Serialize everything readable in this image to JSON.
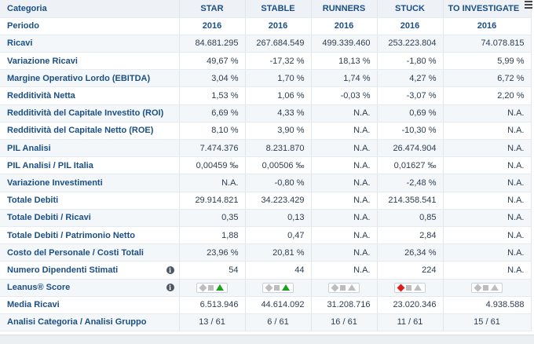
{
  "header": {
    "label": "Categoria",
    "columns": [
      "STAR",
      "STABLE",
      "RUNNERS",
      "STUCK",
      "TO INVESTIGATE"
    ]
  },
  "period": {
    "label": "Periodo",
    "values": [
      "2016",
      "2016",
      "2016",
      "2016",
      "2016"
    ]
  },
  "rows": [
    {
      "label": "Ricavi",
      "values": [
        "84.681.295",
        "267.684.549",
        "499.339.460",
        "253.223.804",
        "74.078.815"
      ]
    },
    {
      "label": "Variazione Ricavi",
      "values": [
        "49,67 %",
        "-17,32 %",
        "18,13 %",
        "-1,80 %",
        "5,99 %"
      ]
    },
    {
      "label": "Margine Operativo Lordo (EBITDA)",
      "values": [
        "3,04 %",
        "1,70 %",
        "1,74 %",
        "4,27 %",
        "6,72 %"
      ]
    },
    {
      "label": "Redditività Netta",
      "values": [
        "1,53 %",
        "1,06 %",
        "-0,03 %",
        "-3,07 %",
        "2,20 %"
      ]
    },
    {
      "label": "Redditività del Capitale Investito (ROI)",
      "values": [
        "6,69 %",
        "4,33 %",
        "N.A.",
        "0,69 %",
        "N.A."
      ]
    },
    {
      "label": "Redditività del Capitale Netto (ROE)",
      "values": [
        "8,10 %",
        "3,90 %",
        "N.A.",
        "-10,30 %",
        "N.A."
      ]
    },
    {
      "label": "PIL Analisi",
      "values": [
        "7.474.376",
        "8.231.870",
        "N.A.",
        "26.474.904",
        "N.A."
      ]
    },
    {
      "label": "PIL Analisi / PIL Italia",
      "values": [
        "0,00459 ‰",
        "0,00506 ‰",
        "N.A.",
        "0,01627 ‰",
        "N.A."
      ]
    },
    {
      "label": "Variazione Investimenti",
      "values": [
        "N.A.",
        "-0,80 %",
        "N.A.",
        "-2,48 %",
        "N.A."
      ]
    },
    {
      "label": "Totale Debiti",
      "values": [
        "29.914.821",
        "34.223.429",
        "N.A.",
        "214.358.541",
        "N.A."
      ]
    },
    {
      "label": "Totale Debiti  / Ricavi",
      "values": [
        "0,35",
        "0,13",
        "N.A.",
        "0,85",
        "N.A."
      ]
    },
    {
      "label": "Totale Debiti  / Patrimonio Netto",
      "values": [
        "1,88",
        "0,47",
        "N.A.",
        "2,84",
        "N.A."
      ]
    },
    {
      "label": "Costo del Personale / Costi Totali",
      "values": [
        "23,96 %",
        "20,81 %",
        "N.A.",
        "26,34 %",
        "N.A."
      ]
    },
    {
      "label": "Numero Dipendenti Stimati",
      "info": true,
      "values": [
        "54",
        "44",
        "N.A.",
        "224",
        "N.A."
      ]
    }
  ],
  "score_row": {
    "label": "Leanus® Score",
    "scores": [
      {
        "diamond": "#bdbdbd",
        "square": "#bdbdbd",
        "triangle": "#1aa31a"
      },
      {
        "diamond": "#bdbdbd",
        "square": "#bdbdbd",
        "triangle": "#1aa31a"
      },
      {
        "diamond": "#bdbdbd",
        "square": "#bdbdbd",
        "triangle": "#bdbdbd"
      },
      {
        "diamond": "#e01b1b",
        "square": "#bdbdbd",
        "triangle": "#bdbdbd"
      },
      {
        "diamond": "#bdbdbd",
        "square": "#bdbdbd",
        "triangle": "#bdbdbd"
      }
    ]
  },
  "tail_rows": [
    {
      "label": "Media Ricavi",
      "values": [
        "6.513.946",
        "44.614.092",
        "31.208.716",
        "23.020.346",
        "4.938.588"
      ],
      "align": "num"
    },
    {
      "label": "Analisi Categoria / Analisi Gruppo",
      "values": [
        "13 / 61",
        "6 / 61",
        "16 / 61",
        "11 / 61",
        "15 / 61"
      ],
      "align": "center"
    }
  ],
  "info_glyph": "i"
}
